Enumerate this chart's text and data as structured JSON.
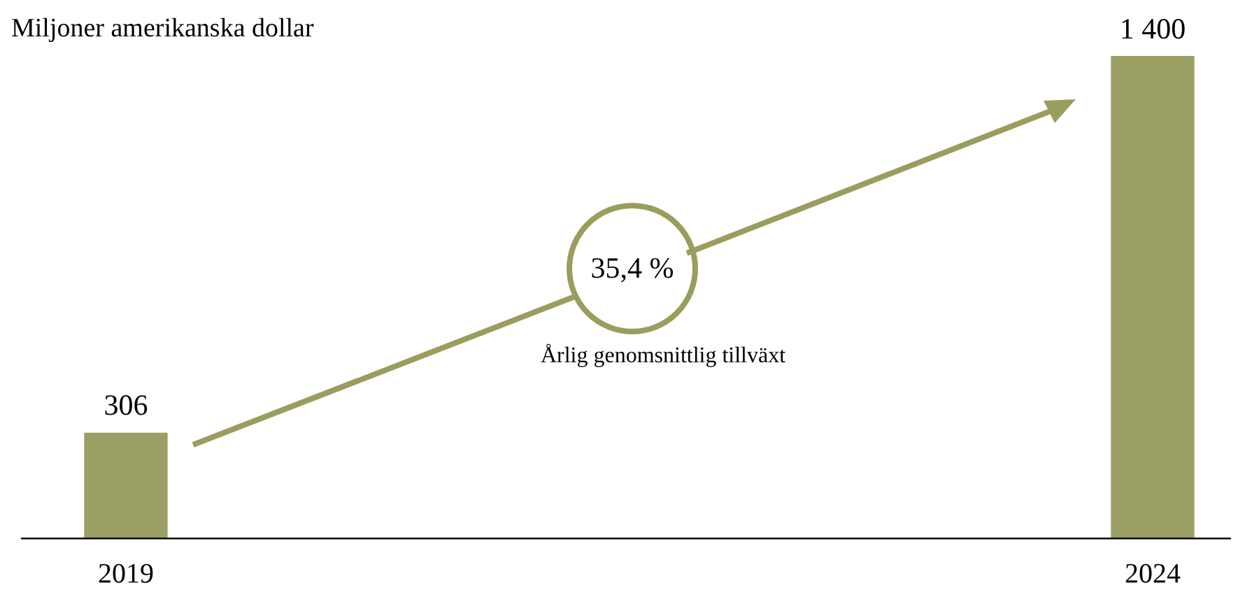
{
  "chart_data": {
    "type": "bar",
    "ylabel": "Miljoner amerikanska dollar",
    "categories": [
      "2019",
      "2024"
    ],
    "values": [
      306,
      1400
    ],
    "value_labels": [
      "306",
      "1 400"
    ],
    "color": "#9ca064",
    "annotations": [
      "35,4 %",
      "Årlig genomsnittlig tillväxt"
    ],
    "legend": false,
    "grid": false
  }
}
